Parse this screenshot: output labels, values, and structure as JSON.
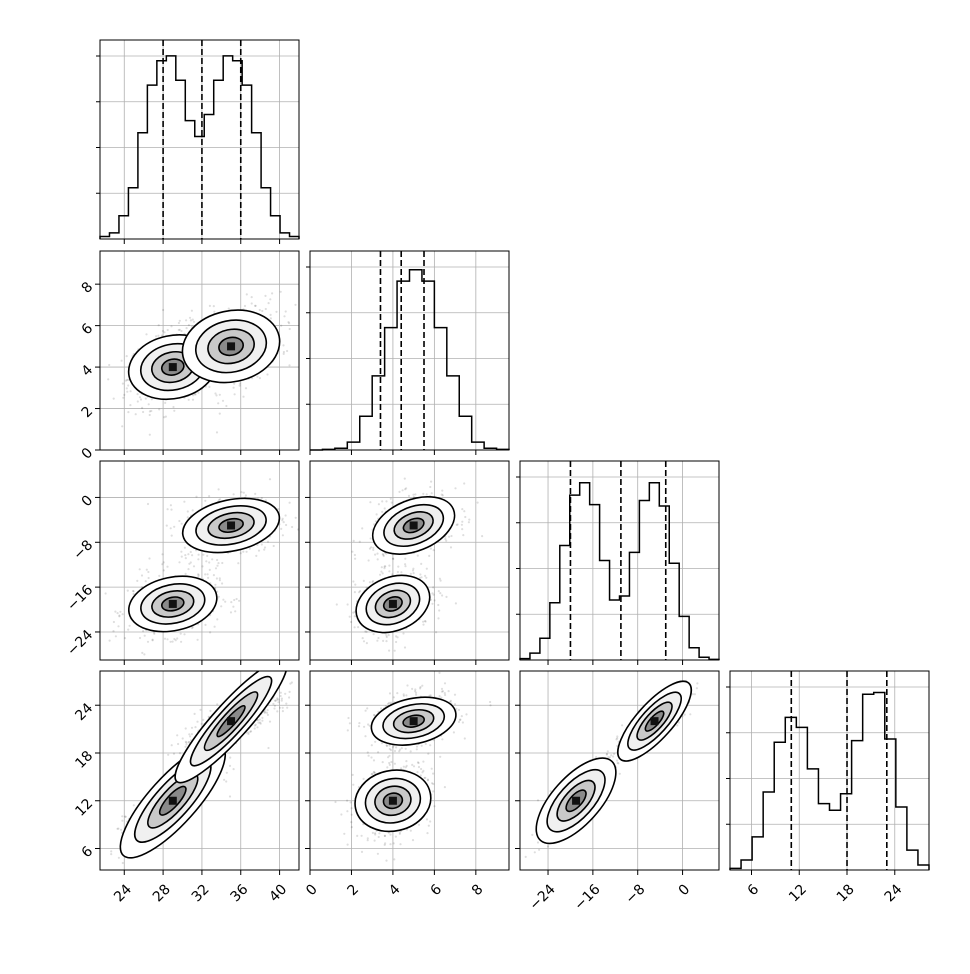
{
  "chart_data": {
    "type": "corner",
    "grid": true,
    "n_params": 4,
    "params": [
      {
        "range": [
          21.5,
          42.0
        ],
        "ticks": [
          24,
          28,
          32,
          36,
          40
        ],
        "tick_labels": [
          "24",
          "28",
          "32",
          "36",
          "40"
        ],
        "quantiles": [
          28.0,
          32.0,
          36.0
        ]
      },
      {
        "range": [
          0.0,
          9.6
        ],
        "ticks": [
          0,
          2,
          4,
          6,
          8
        ],
        "tick_labels": [
          "0",
          "2",
          "4",
          "6",
          "8"
        ],
        "quantiles": [
          3.4,
          4.4,
          5.5
        ]
      },
      {
        "range": [
          -29.0,
          6.5
        ],
        "ticks": [
          -24,
          -16,
          -8,
          0
        ],
        "tick_labels": [
          "−24",
          "−16",
          "−8",
          "0"
        ],
        "quantiles": [
          -20.0,
          -11.0,
          -3.0
        ]
      },
      {
        "range": [
          3.3,
          28.3
        ],
        "ticks": [
          6,
          12,
          18,
          24
        ],
        "tick_labels": [
          "6",
          "12",
          "18",
          "24"
        ],
        "quantiles": [
          11.0,
          18.0,
          23.0
        ]
      }
    ],
    "histograms": [
      {
        "counts": [
          0.2,
          0.5,
          1.9,
          4.2,
          8.7,
          12.6,
          14.6,
          15.0,
          13.0,
          9.7,
          8.4,
          10.2,
          13.0,
          15.0,
          14.6,
          12.6,
          8.7,
          4.2,
          1.9,
          0.5,
          0.2
        ],
        "max": 16.3
      },
      {
        "counts": [
          0,
          0.1,
          0.3,
          1.3,
          5.6,
          12.3,
          20.3,
          28.0,
          29.9,
          28.0,
          20.3,
          12.3,
          5.6,
          1.3,
          0.3,
          0.1
        ],
        "max": 33.0
      },
      {
        "counts": [
          0.1,
          0.5,
          1.6,
          4.2,
          8.4,
          12.1,
          13.0,
          11.4,
          7.3,
          4.4,
          4.7,
          7.9,
          11.7,
          13.0,
          11.3,
          7.1,
          3.2,
          0.9,
          0.2,
          0.05
        ],
        "max": 14.6
      },
      {
        "counts": [
          0.1,
          0.6,
          2.0,
          4.7,
          7.7,
          9.2,
          8.6,
          6.1,
          4.0,
          3.6,
          4.6,
          7.8,
          10.6,
          10.7,
          7.9,
          3.8,
          1.2,
          0.3
        ],
        "max": 12.0
      }
    ],
    "modes": [
      {
        "mean": [
          29,
          4.0,
          -19,
          12
        ],
        "sd": [
          2.0,
          0.8,
          2.5,
          2.0
        ]
      },
      {
        "mean": [
          35,
          5.0,
          -5,
          22
        ],
        "sd": [
          2.2,
          0.9,
          2.4,
          1.5
        ]
      }
    ]
  }
}
